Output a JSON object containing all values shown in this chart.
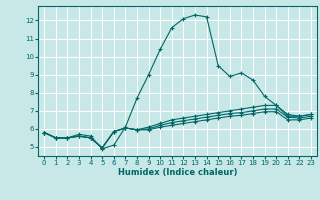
{
  "bg_color": "#c8e8e8",
  "grid_color": "#ffffff",
  "line_color": "#006666",
  "marker": "+",
  "xlabel": "Humidex (Indice chaleur)",
  "xlim": [
    -0.5,
    23.5
  ],
  "ylim": [
    4.5,
    12.8
  ],
  "yticks": [
    5,
    6,
    7,
    8,
    9,
    10,
    11,
    12
  ],
  "xticks": [
    0,
    1,
    2,
    3,
    4,
    5,
    6,
    7,
    8,
    9,
    10,
    11,
    12,
    13,
    14,
    15,
    16,
    17,
    18,
    19,
    20,
    21,
    22,
    23
  ],
  "series": [
    [
      5.8,
      5.5,
      5.5,
      5.7,
      5.6,
      4.9,
      5.1,
      6.1,
      7.7,
      9.0,
      10.4,
      11.6,
      12.1,
      12.3,
      12.2,
      9.5,
      8.9,
      9.1,
      8.7,
      7.8,
      7.3,
      6.7,
      6.7,
      6.8
    ],
    [
      5.8,
      5.5,
      5.5,
      5.6,
      5.5,
      4.95,
      5.85,
      6.05,
      5.95,
      6.1,
      6.3,
      6.5,
      6.6,
      6.7,
      6.8,
      6.9,
      7.0,
      7.1,
      7.2,
      7.3,
      7.3,
      6.8,
      6.7,
      6.8
    ],
    [
      5.8,
      5.5,
      5.5,
      5.6,
      5.5,
      4.95,
      5.85,
      6.05,
      5.95,
      6.0,
      6.2,
      6.35,
      6.45,
      6.55,
      6.65,
      6.75,
      6.85,
      6.9,
      7.0,
      7.1,
      7.1,
      6.65,
      6.6,
      6.7
    ],
    [
      5.8,
      5.5,
      5.5,
      5.6,
      5.5,
      4.95,
      5.85,
      6.05,
      5.95,
      5.95,
      6.1,
      6.2,
      6.3,
      6.4,
      6.5,
      6.6,
      6.7,
      6.75,
      6.85,
      6.95,
      6.95,
      6.5,
      6.5,
      6.6
    ]
  ]
}
